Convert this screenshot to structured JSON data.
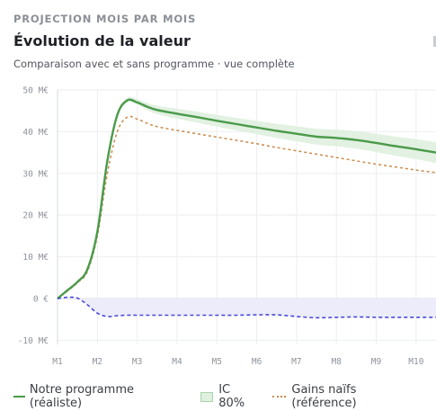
{
  "header": {
    "eyebrow": "PROJECTION MOIS PAR MOIS",
    "title": "Évolution de la valeur",
    "subtitle": "Comparaison avec et sans programme · vue complète"
  },
  "legend": {
    "realistic": "Notre programme (réaliste)",
    "ci": "IC 80%",
    "naive": "Gains naïfs (référence)"
  },
  "colors": {
    "realistic": "#4a9a4a",
    "ci_band": "#dff0df",
    "naive": "#c98a4a",
    "reference": "#4a4ad8",
    "reference_fill": "#ececfa",
    "grid": "#eceef1"
  },
  "chart_data": {
    "type": "line",
    "x": [
      1,
      1.25,
      1.5,
      1.75,
      2,
      2.25,
      2.5,
      2.75,
      3,
      3.25,
      3.5,
      4,
      4.5,
      5,
      5.5,
      6,
      6.5,
      7,
      7.5,
      8,
      8.5,
      9,
      9.5,
      10,
      10.5
    ],
    "x_tick_labels": [
      "M1",
      "M2",
      "M3",
      "M4",
      "M5",
      "M6",
      "M7",
      "M8",
      "M9",
      "M10"
    ],
    "y_tick_labels": [
      "50 M€",
      "40 M€",
      "30 M€",
      "20 M€",
      "10 M€",
      "0 €",
      "-10 M€"
    ],
    "y_ticks": [
      50,
      40,
      30,
      20,
      10,
      0,
      -10
    ],
    "ylim": [
      -11,
      50
    ],
    "xlim": [
      1,
      10.5
    ],
    "grid": true,
    "legend_position": "bottom",
    "series": [
      {
        "name": "Notre programme (réaliste)",
        "style": "solid",
        "values": [
          0,
          2,
          4,
          7,
          16,
          33,
          44,
          47.5,
          47,
          46,
          45.2,
          44.3,
          43.5,
          42.6,
          41.8,
          41.0,
          40.2,
          39.5,
          38.8,
          38.5,
          38.0,
          37.3,
          36.5,
          35.8,
          35.0
        ]
      },
      {
        "name": "IC 80%",
        "style": "band",
        "lower": [
          0,
          2,
          4,
          7,
          16,
          33,
          43.5,
          47,
          46.5,
          45.2,
          44.2,
          43.1,
          42.2,
          41.2,
          40.3,
          39.4,
          38.5,
          37.7,
          36.9,
          36.5,
          35.9,
          35.1,
          34.2,
          33.4,
          32.5
        ],
        "upper": [
          0,
          2,
          4,
          7,
          16,
          33,
          44.5,
          48.2,
          47.8,
          46.9,
          46.2,
          45.5,
          44.8,
          44.0,
          43.3,
          42.6,
          41.9,
          41.3,
          40.7,
          40.5,
          40.1,
          39.5,
          38.8,
          38.2,
          37.5
        ]
      },
      {
        "name": "Gains naïfs (référence)",
        "style": "dashed",
        "values": [
          0,
          1.8,
          3.8,
          6.5,
          15,
          30,
          40,
          43.5,
          43,
          42,
          41.2,
          40.3,
          39.5,
          38.7,
          37.9,
          37.1,
          36.2,
          35.4,
          34.6,
          33.8,
          33.0,
          32.2,
          31.5,
          30.8,
          30.2
        ]
      },
      {
        "name": "",
        "style": "dashed",
        "values": [
          0,
          0.3,
          0.1,
          -1.5,
          -3.5,
          -4.3,
          -4.1,
          -4.0,
          -4.0,
          -4.0,
          -4.0,
          -4.0,
          -4.0,
          -4.0,
          -4.0,
          -3.9,
          -3.9,
          -4.3,
          -4.6,
          -4.5,
          -4.4,
          -4.5,
          -4.5,
          -4.5,
          -4.5
        ]
      }
    ]
  }
}
